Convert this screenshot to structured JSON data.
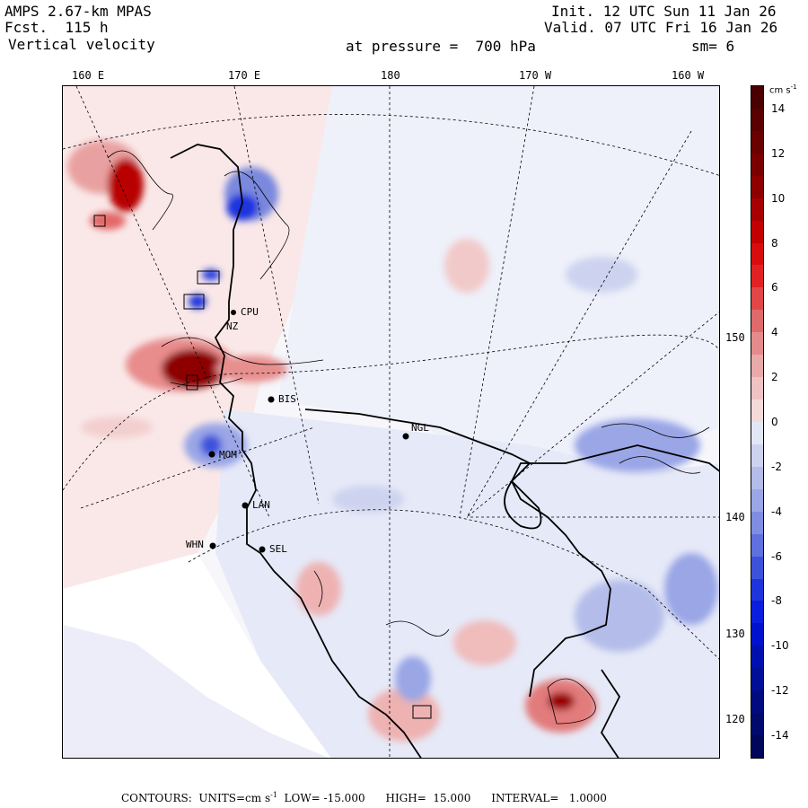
{
  "header": {
    "model": "AMPS 2.67-km MPAS",
    "forecast": "Fcst.  115 h",
    "variable": "Vertical velocity",
    "pressure": "at pressure =  700 hPa",
    "init": "Init. 12 UTC Sun 11 Jan 26",
    "valid": "Valid. 07 UTC Fri 16 Jan 26",
    "smoothing": "sm= 6"
  },
  "map": {
    "lon_labels": [
      "160 E",
      "170 E",
      "180",
      "170 W",
      "160 W"
    ],
    "lat_labels": [
      "150 W",
      "140 W",
      "130 W",
      "120 W"
    ],
    "stations": [
      {
        "id": "CPU",
        "label": "CPU"
      },
      {
        "id": "NZ",
        "label": "NZ"
      },
      {
        "id": "BIS",
        "label": "BIS"
      },
      {
        "id": "NGL",
        "label": "NGL"
      },
      {
        "id": "MOM",
        "label": "MOM"
      },
      {
        "id": "LAN",
        "label": "LAN"
      },
      {
        "id": "WHN",
        "label": "WHN"
      },
      {
        "id": "SEL",
        "label": "SEL"
      }
    ]
  },
  "colorbar": {
    "units": "cm s",
    "units_exp": "-1",
    "tick_labels": [
      "14",
      "12",
      "10",
      "8",
      "6",
      "4",
      "2",
      "0",
      "-2",
      "-4",
      "-6",
      "-8",
      "-10",
      "-12",
      "-14"
    ],
    "min": -15,
    "max": 15,
    "step": 1,
    "colors_pos": [
      "#f5dada",
      "#efc3c3",
      "#eaa9a9",
      "#e58b8b",
      "#e06a6a",
      "#e34646",
      "#e22222",
      "#d90c0c",
      "#c40000",
      "#a80000",
      "#8e0000",
      "#7a0000",
      "#6a0000",
      "#5a0000",
      "#4a0000"
    ],
    "colors_neg": [
      "#e3e7f5",
      "#cdd3ef",
      "#b4bdea",
      "#9aa6e6",
      "#7f8ee2",
      "#5f70df",
      "#3d52dc",
      "#1e35de",
      "#0a1ee0",
      "#0012cf",
      "#0010b0",
      "#000e98",
      "#000b80",
      "#00096c",
      "#00075a"
    ]
  },
  "footer": {
    "text_a": "CONTOURS:  UNITS=cm s",
    "text_exp": "-1",
    "text_b": "  LOW= -15.000      HIGH=  15.000      INTERVAL=   1.0000"
  }
}
